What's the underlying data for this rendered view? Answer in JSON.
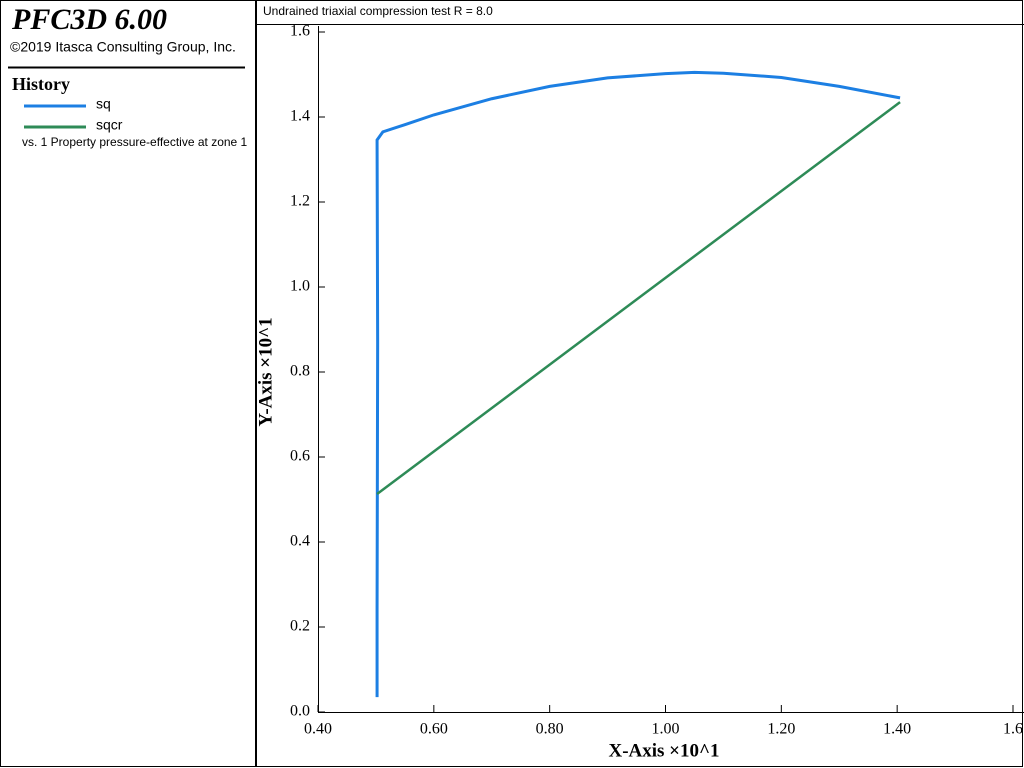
{
  "header": {
    "title": "PFC3D 6.00",
    "copyright": "©2019 Itasca Consulting Group, Inc."
  },
  "history_label": "History",
  "x_source": "vs. 1 Property pressure-effective at zone 1",
  "chart_data": {
    "type": "line",
    "title": "Undrained triaxial compression test R = 8.0",
    "x_label": "X-Axis ×10^1",
    "y_label": "Y-Axis ×10^1",
    "xlim": [
      0.4,
      1.6
    ],
    "ylim": [
      0,
      1.6
    ],
    "xticks": [
      {
        "value": 0.4,
        "label": "0.40"
      },
      {
        "value": 0.6,
        "label": "0.60"
      },
      {
        "value": 0.8,
        "label": "0.80"
      },
      {
        "value": 1,
        "label": "1.00"
      },
      {
        "value": 1.2,
        "label": "1.20"
      },
      {
        "value": 1.4,
        "label": "1.40"
      },
      1.6
    ],
    "yticks": [
      {
        "value": 0,
        "label": "0.0"
      },
      0.2,
      0.4,
      0.6,
      0.8,
      {
        "value": 1,
        "label": "1.0"
      },
      1.2,
      1.4,
      1.6
    ],
    "series": [
      {
        "name": "sq",
        "color": "#1c7fe3",
        "x": [
          0.502,
          0.502,
          0.503,
          0.502,
          0.512,
          0.55,
          0.6,
          0.7,
          0.8,
          0.9,
          1.0,
          1.05,
          1.1,
          1.2,
          1.3,
          1.405
        ],
        "values": [
          0.035,
          0.24,
          0.87,
          1.346,
          1.365,
          1.382,
          1.405,
          1.443,
          1.472,
          1.492,
          1.502,
          1.505,
          1.503,
          1.493,
          1.472,
          1.445
        ]
      },
      {
        "name": "sqcr",
        "color": "#2e8b57",
        "x": [
          0.502,
          1.405
        ],
        "values": [
          0.513,
          1.435
        ]
      }
    ]
  }
}
